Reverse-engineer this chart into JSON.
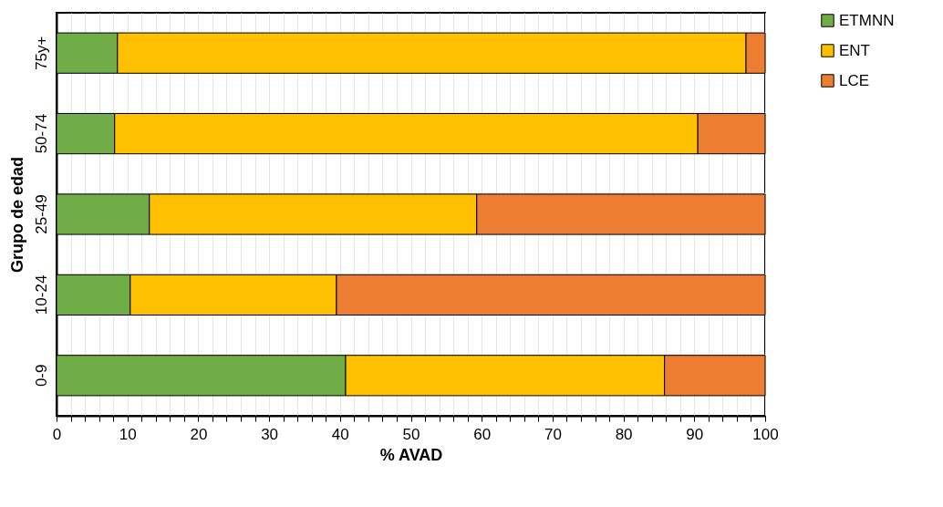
{
  "chart_data": {
    "type": "bar",
    "orientation": "horizontal",
    "stacked": true,
    "xlabel": "% AVAD",
    "ylabel": "Grupo de edad",
    "categories": [
      "75y+",
      "50-74",
      "25-49",
      "10-24",
      "0-9"
    ],
    "series": [
      {
        "name": "ETMNN",
        "color": "#70ad47",
        "values": [
          8.6,
          8.2,
          13.1,
          10.4,
          40.8
        ]
      },
      {
        "name": "ENT",
        "color": "#ffc000",
        "values": [
          88.7,
          82.3,
          46.2,
          29.1,
          45.0
        ]
      },
      {
        "name": "LCE",
        "color": "#ed7d31",
        "values": [
          2.7,
          9.5,
          40.7,
          60.5,
          14.2
        ]
      }
    ],
    "xlim": [
      0,
      100
    ],
    "xticks": [
      0,
      {
        "value": 2,
        "label": null
      },
      {
        "value": 4,
        "label": null
      },
      {
        "value": 6,
        "label": null
      },
      {
        "value": 8,
        "label": null
      },
      10,
      {
        "value": 12,
        "label": null
      },
      {
        "value": 14,
        "label": null
      },
      {
        "value": 16,
        "label": null
      },
      {
        "value": 18,
        "label": null
      },
      20,
      {
        "value": 22,
        "label": null
      },
      {
        "value": 24,
        "label": null
      },
      {
        "value": 26,
        "label": null
      },
      {
        "value": 28,
        "label": null
      },
      30,
      {
        "value": 32,
        "label": null
      },
      {
        "value": 34,
        "label": null
      },
      {
        "value": 36,
        "label": null
      },
      {
        "value": 38,
        "label": null
      },
      40,
      {
        "value": 42,
        "label": null
      },
      {
        "value": 44,
        "label": null
      },
      {
        "value": 46,
        "label": null
      },
      {
        "value": 48,
        "label": null
      },
      50,
      {
        "value": 52,
        "label": null
      },
      {
        "value": 54,
        "label": null
      },
      {
        "value": 56,
        "label": null
      },
      {
        "value": 58,
        "label": null
      },
      60,
      {
        "value": 62,
        "label": null
      },
      {
        "value": 64,
        "label": null
      },
      {
        "value": 66,
        "label": null
      },
      {
        "value": 68,
        "label": null
      },
      70,
      {
        "value": 72,
        "label": null
      },
      {
        "value": 74,
        "label": null
      },
      {
        "value": 76,
        "label": null
      },
      {
        "value": 78,
        "label": null
      },
      80,
      {
        "value": 82,
        "label": null
      },
      {
        "value": 84,
        "label": null
      },
      {
        "value": 86,
        "label": null
      },
      {
        "value": 88,
        "label": null
      },
      90,
      {
        "value": 92,
        "label": null
      },
      {
        "value": 94,
        "label": null
      },
      {
        "value": 96,
        "label": null
      },
      {
        "value": 98,
        "label": null
      },
      100
    ],
    "grid": true,
    "legend": "right"
  }
}
